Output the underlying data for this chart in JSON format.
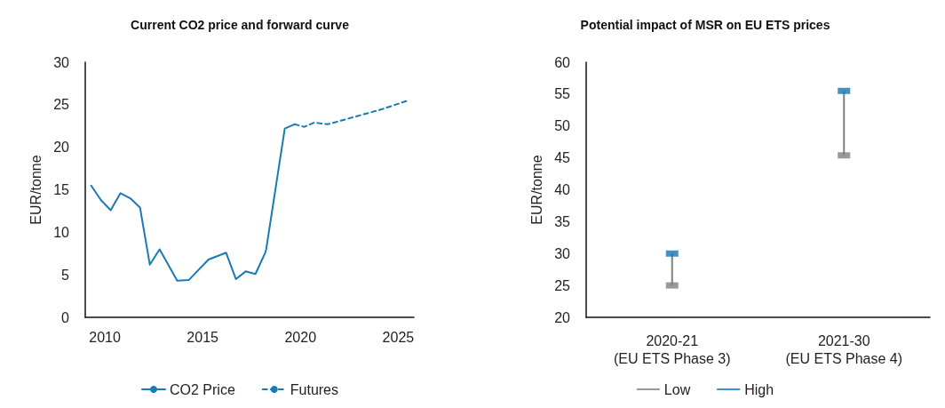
{
  "chart_data": [
    {
      "type": "line",
      "title": "Current CO2 price and forward curve",
      "ylabel": "EUR/tonne",
      "xlim": [
        2009,
        2025.8
      ],
      "xticks": [
        2010,
        2015,
        2020,
        2025
      ],
      "ylim": [
        0,
        30
      ],
      "yticks": [
        0,
        5,
        10,
        15,
        20,
        25,
        30
      ],
      "grid": false,
      "legend": "bottom",
      "marker": "none",
      "series": [
        {
          "name": "CO2 Price",
          "color": "#1a7ab5",
          "line_style": "solid",
          "x": [
            2009.3,
            2009.8,
            2010.3,
            2010.8,
            2011.3,
            2011.8,
            2012.3,
            2012.8,
            2013.7,
            2014.3,
            2015.3,
            2016.2,
            2016.7,
            2017.2,
            2017.7,
            2018.2,
            2018.25,
            2019.2,
            2019.7
          ],
          "values": [
            15.5,
            13.8,
            12.6,
            14.6,
            14.0,
            12.9,
            6.2,
            8.0,
            4.3,
            4.4,
            6.8,
            7.6,
            4.5,
            5.4,
            5.1,
            7.6,
            8.0,
            22.2,
            22.7
          ]
        },
        {
          "name": "Futures",
          "color": "#1a7ab5",
          "line_style": "dashed",
          "x": [
            2019.7,
            2020.2,
            2020.7,
            2021.4,
            2022.8,
            2024.2,
            2025.5
          ],
          "values": [
            22.7,
            22.4,
            22.9,
            22.7,
            23.6,
            24.5,
            25.5
          ]
        }
      ]
    },
    {
      "type": "scatter",
      "title": "Potential impact of MSR on EU ETS prices",
      "ylabel": "EUR/tonne",
      "categories": [
        "2020-21\n(EU ETS Phase 3)",
        "2021-30\n(EU ETS Phase 4)"
      ],
      "ylim": [
        20,
        60
      ],
      "yticks": [
        20,
        25,
        30,
        35,
        40,
        45,
        50,
        55,
        60
      ],
      "grid": false,
      "legend": "bottom",
      "marker": "square",
      "series": [
        {
          "name": "Low",
          "color": "#808080",
          "values": [
            25,
            45.4
          ]
        },
        {
          "name": "High",
          "color": "#0f78b4",
          "values": [
            30,
            55.5
          ]
        }
      ]
    }
  ]
}
